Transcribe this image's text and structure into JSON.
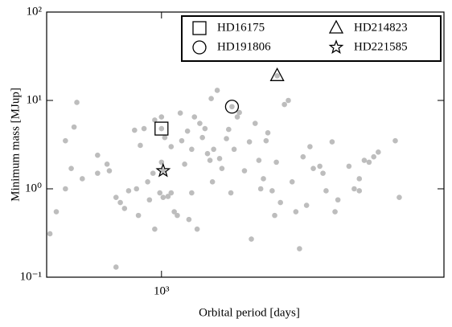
{
  "chart_data": {
    "type": "scatter",
    "x_label": "Orbital period [days]",
    "y_label": "Minimum mass [MJup]",
    "xlim": [
      500,
      5500
    ],
    "ylim": [
      0.1,
      100
    ],
    "x_log": true,
    "y_log": true,
    "xticks": [
      {
        "value": 1000,
        "label": "10³"
      }
    ],
    "yticks": [
      {
        "value": 0.1,
        "label": "10⁻¹"
      },
      {
        "value": 1,
        "label": "10⁰"
      },
      {
        "value": 10,
        "label": "10¹"
      },
      {
        "value": 100,
        "label": "10²"
      }
    ],
    "legend": "upper right",
    "series": [
      {
        "color": "#bdbdbd",
        "marker": "dot",
        "x": [
          510,
          530,
          600,
          590,
          560,
          580,
          560,
          620,
          680,
          680,
          720,
          730,
          760,
          780,
          800,
          760,
          820,
          850,
          860,
          870,
          880,
          900,
          920,
          930,
          950,
          960,
          960,
          990,
          1000,
          1000,
          1010,
          1020,
          1040,
          1060,
          1060,
          1080,
          1100,
          1120,
          1130,
          1150,
          1170,
          1180,
          1200,
          1200,
          1220,
          1240,
          1260,
          1280,
          1300,
          1320,
          1340,
          1350,
          1360,
          1370,
          1400,
          1420,
          1440,
          1480,
          1500,
          1520,
          1550,
          1580,
          1600,
          1650,
          1700,
          1720,
          1760,
          1800,
          1820,
          1850,
          1880,
          1900,
          1950,
          1980,
          2000,
          2050,
          2100,
          2150,
          2200,
          2250,
          2300,
          2350,
          2400,
          2450,
          2500,
          2600,
          2650,
          2700,
          2800,
          2900,
          3100,
          3200,
          3300,
          3400,
          3500,
          3600,
          3700,
          4100,
          4200,
          3300,
          2850
        ],
        "y": [
          0.31,
          0.55,
          9.5,
          5.0,
          3.5,
          1.7,
          1.0,
          1.3,
          1.5,
          2.4,
          1.9,
          1.6,
          0.8,
          0.7,
          0.6,
          0.13,
          0.95,
          4.6,
          1.0,
          0.5,
          3.1,
          4.8,
          1.2,
          0.75,
          1.5,
          6.0,
          0.35,
          0.9,
          6.5,
          2.0,
          0.8,
          3.8,
          0.82,
          3.0,
          0.9,
          0.55,
          0.5,
          7.2,
          3.5,
          1.9,
          4.5,
          0.45,
          2.8,
          0.9,
          6.5,
          0.35,
          5.5,
          3.8,
          4.8,
          2.5,
          2.1,
          10.5,
          1.2,
          2.8,
          13,
          2.2,
          1.7,
          3.7,
          4.7,
          0.9,
          2.8,
          6.5,
          7.3,
          1.6,
          3.4,
          0.27,
          5.5,
          2.1,
          1.0,
          1.3,
          3.5,
          4.3,
          0.95,
          0.5,
          2.0,
          0.7,
          9.0,
          10,
          1.2,
          0.55,
          0.21,
          2.3,
          0.65,
          3.0,
          1.7,
          1.8,
          1.5,
          0.95,
          3.4,
          0.75,
          1.8,
          1.0,
          1.3,
          2.1,
          2.0,
          2.3,
          2.6,
          3.5,
          0.8,
          0.95,
          0.55
        ]
      },
      {
        "name": "HD16175",
        "marker": "square",
        "color": "#000000",
        "x": [
          1000
        ],
        "y": [
          4.8
        ]
      },
      {
        "name": "HD214823",
        "marker": "triangle",
        "color": "#000000",
        "x": [
          2010
        ],
        "y": [
          19
        ]
      },
      {
        "name": "HD191806",
        "marker": "circle",
        "color": "#000000",
        "x": [
          1530
        ],
        "y": [
          8.5
        ]
      },
      {
        "name": "HD221585",
        "marker": "star",
        "color": "#000000",
        "x": [
          1010
        ],
        "y": [
          1.6
        ]
      }
    ]
  }
}
